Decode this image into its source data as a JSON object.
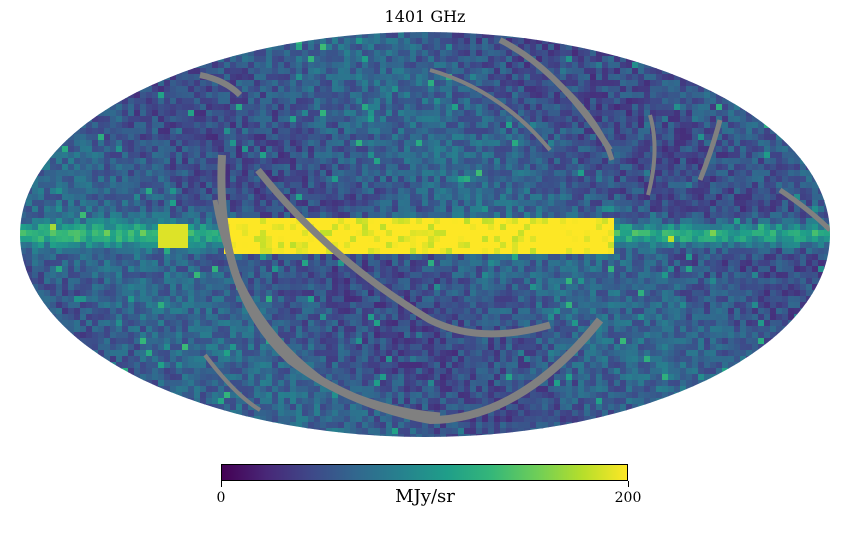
{
  "map": {
    "title": "1401 GHz",
    "projection": "mollweide",
    "colormap": "viridis",
    "masked_color": "#808080",
    "features": [
      "galactic-plane-band",
      "galactic-center-bulge",
      "masked-scan-arcs",
      "noisy-background"
    ]
  },
  "colorbar": {
    "min_label": "0",
    "max_label": "200",
    "unit": "MJy/sr",
    "min": 0,
    "max": 200,
    "stops": [
      "#440154",
      "#482878",
      "#3e4989",
      "#31688e",
      "#26828e",
      "#1f9e89",
      "#35b779",
      "#6ece58",
      "#b5de2b",
      "#fde725"
    ]
  }
}
